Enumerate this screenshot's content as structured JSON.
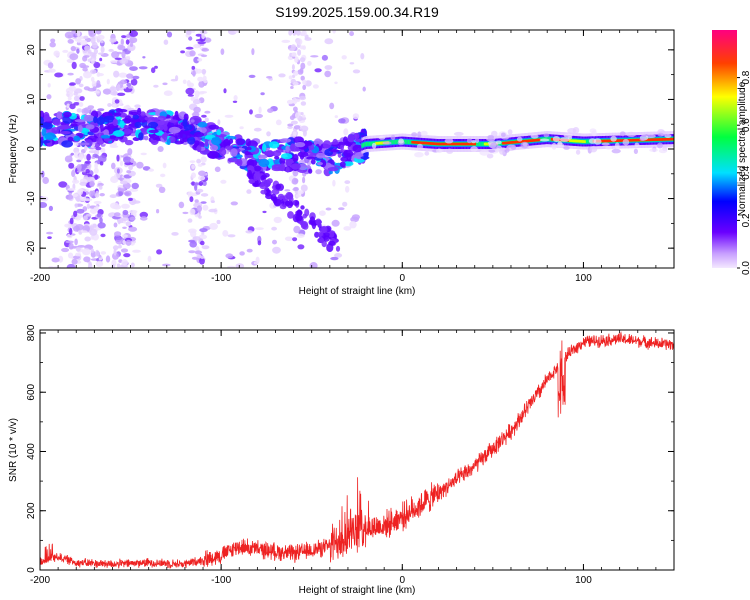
{
  "figure_title": "S199.2025.159.00.34.R19",
  "chart_data": [
    {
      "type": "heatmap",
      "xlabel": "Height of straight line (km)",
      "ylabel": "Frequency (Hz)",
      "xlim": [
        -200,
        150
      ],
      "ylim": [
        -24,
        24
      ],
      "xticks": [
        -200,
        -100,
        0,
        100
      ],
      "yticks": [
        -20,
        -10,
        0,
        10,
        20
      ],
      "colorbar": {
        "label": "Normalized spectral amplitude",
        "range": [
          0,
          1
        ],
        "ticks": [
          0.0,
          0.2,
          0.4,
          0.6,
          0.8
        ]
      },
      "ridge": [
        {
          "x": -200,
          "f": 4
        },
        {
          "x": -170,
          "f": 4
        },
        {
          "x": -150,
          "f": 5
        },
        {
          "x": -120,
          "f": 4
        },
        {
          "x": -100,
          "f": 1
        },
        {
          "x": -80,
          "f": -2
        },
        {
          "x": -60,
          "f": -1
        },
        {
          "x": -40,
          "f": -2
        },
        {
          "x": -20,
          "f": 1
        },
        {
          "x": 0,
          "f": 1.5
        },
        {
          "x": 20,
          "f": 1
        },
        {
          "x": 50,
          "f": 1
        },
        {
          "x": 80,
          "f": 2
        },
        {
          "x": 100,
          "f": 1.5
        },
        {
          "x": 150,
          "f": 2
        }
      ]
    },
    {
      "type": "line",
      "xlabel": "Height of straight line (km)",
      "ylabel": "SNR (10 * v/v)",
      "xlim": [
        -200,
        150
      ],
      "ylim": [
        0,
        810
      ],
      "xticks": [
        -200,
        -100,
        0,
        100
      ],
      "yticks": [
        0,
        200,
        400,
        600,
        800
      ],
      "color": "#ee2222",
      "trend": [
        {
          "x": -200,
          "y": 30
        },
        {
          "x": -190,
          "y": 45
        },
        {
          "x": -180,
          "y": 25
        },
        {
          "x": -160,
          "y": 20
        },
        {
          "x": -140,
          "y": 25
        },
        {
          "x": -120,
          "y": 20
        },
        {
          "x": -100,
          "y": 50
        },
        {
          "x": -90,
          "y": 80
        },
        {
          "x": -80,
          "y": 70
        },
        {
          "x": -60,
          "y": 55
        },
        {
          "x": -40,
          "y": 80
        },
        {
          "x": -30,
          "y": 120
        },
        {
          "x": -20,
          "y": 140
        },
        {
          "x": -10,
          "y": 150
        },
        {
          "x": 0,
          "y": 180
        },
        {
          "x": 10,
          "y": 220
        },
        {
          "x": 20,
          "y": 260
        },
        {
          "x": 40,
          "y": 350
        },
        {
          "x": 60,
          "y": 470
        },
        {
          "x": 80,
          "y": 640
        },
        {
          "x": 90,
          "y": 720
        },
        {
          "x": 100,
          "y": 770
        },
        {
          "x": 120,
          "y": 780
        },
        {
          "x": 140,
          "y": 765
        },
        {
          "x": 150,
          "y": 760
        }
      ]
    }
  ]
}
